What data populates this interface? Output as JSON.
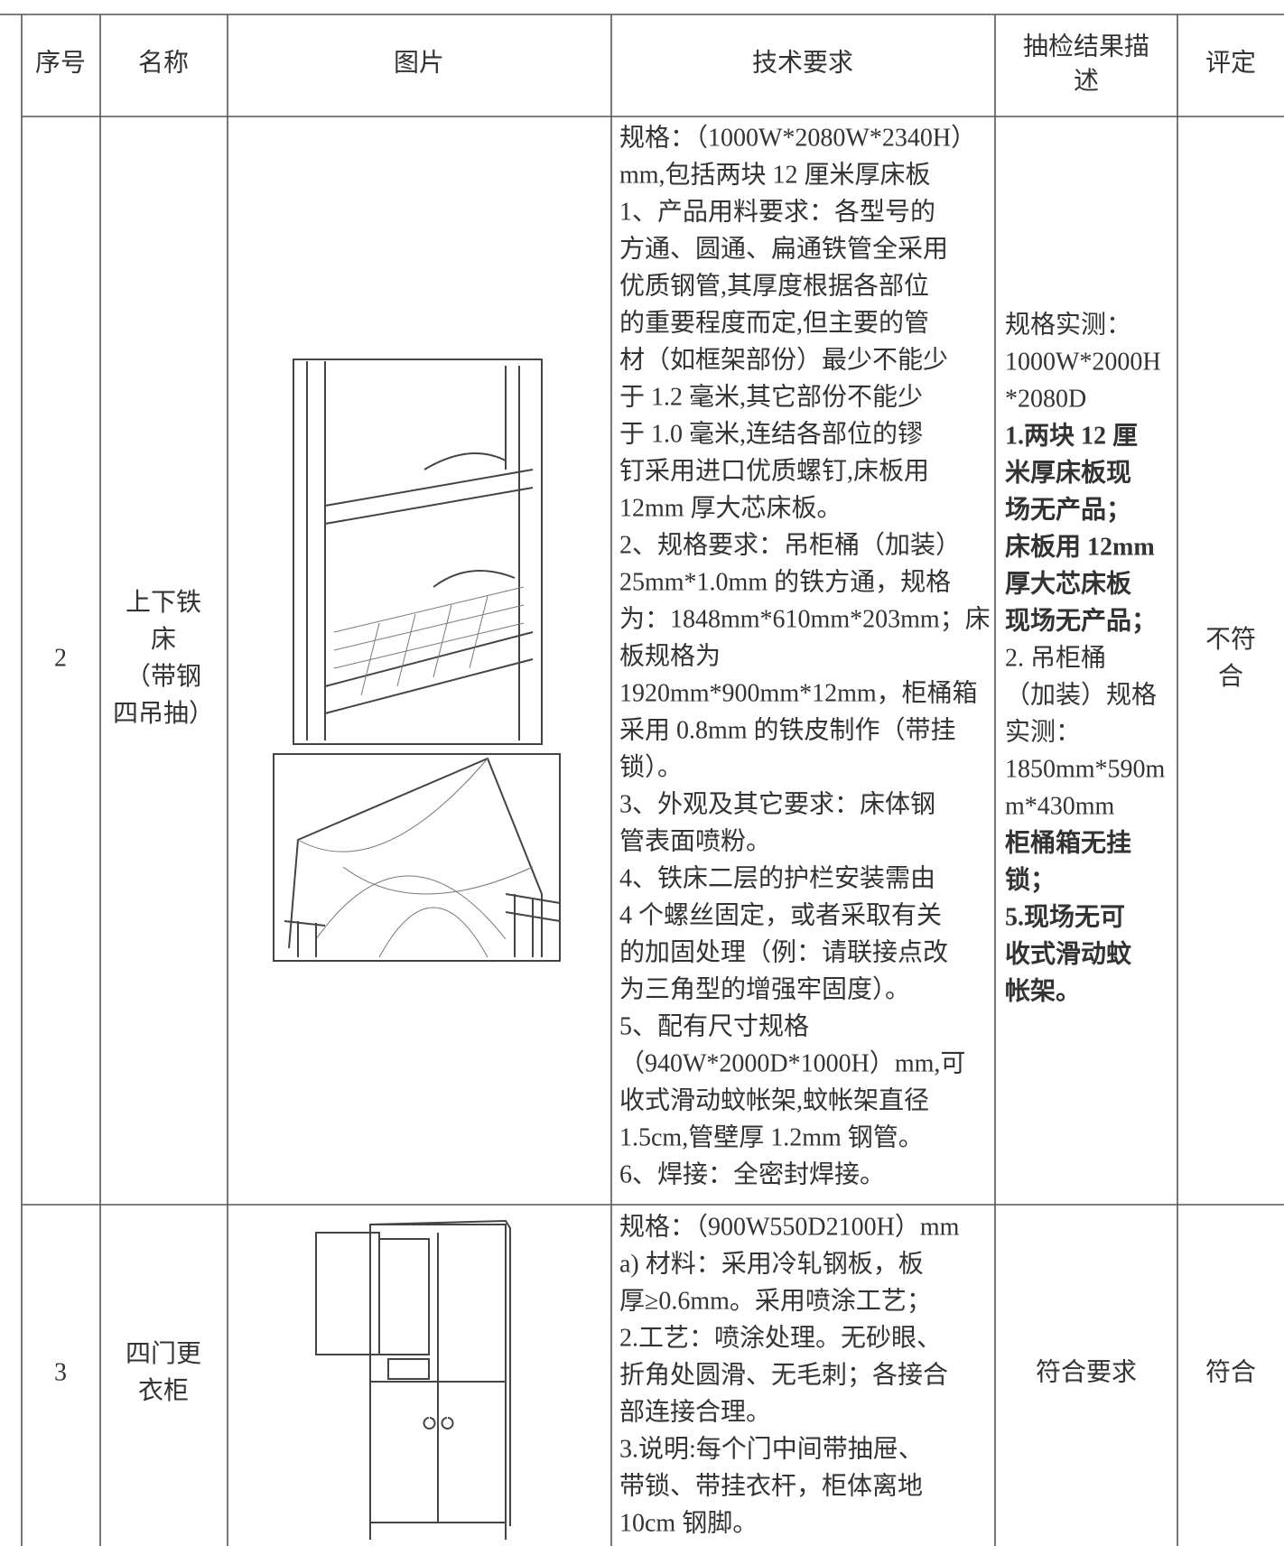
{
  "table": {
    "header": [
      [
        "序号"
      ],
      [
        "名称"
      ],
      [
        "图片"
      ],
      [
        "技术要求"
      ],
      [
        "抽检结果描",
        "述"
      ],
      [
        "评定"
      ]
    ],
    "rows": [
      {
        "no": "2",
        "name": [
          "上下铁",
          "床",
          "（带钢",
          "四吊抽）"
        ],
        "requirements": [
          "规格：（1000W*2080W*2340H）",
          "mm,包括两块 12 厘米厚床板",
          "1、产品用料要求：各型号的",
          "方通、圆通、扁通铁管全采用",
          "优质钢管,其厚度根据各部位",
          "的重要程度而定,但主要的管",
          "材（如框架部份）最少不能少",
          "于 1.2 毫米,其它部份不能少",
          "于 1.0 毫米,连结各部位的镠",
          "钉采用进口优质螺钉,床板用",
          "12mm 厚大芯床板。",
          "2、规格要求：吊柜桶（加装）",
          "25mm*1.0mm 的铁方通，规格",
          "为：1848mm*610mm*203mm；床",
          "板规格为",
          "1920mm*900mm*12mm，柜桶箱",
          "采用 0.8mm 的铁皮制作（带挂",
          "锁）。",
          "3、外观及其它要求：床体钢",
          "管表面喷粉。",
          "4、铁床二层的护栏安装需由",
          "4 个螺丝固定，或者采取有关",
          "的加固处理（例：请联接点改",
          "为三角型的增强牢固度）。",
          "5、配有尺寸规格",
          "（940W*2000D*1000H）mm,可",
          "收式滑动蚊帐架,蚊帐架直径",
          "1.5cm,管壁厚 1.2mm 钢管。",
          "6、焊接：全密封焊接。"
        ],
        "result": [
          {
            "text": "规格实测：",
            "bold": false
          },
          {
            "text": "1000W*2000H",
            "bold": false
          },
          {
            "text": "*2080D",
            "bold": false
          },
          {
            "text": "1.两块 12 厘",
            "bold": true
          },
          {
            "text": "米厚床板现",
            "bold": true
          },
          {
            "text": "场无产品；",
            "bold": true
          },
          {
            "text": "床板用 12mm",
            "bold": true
          },
          {
            "text": "厚大芯床板",
            "bold": true
          },
          {
            "text": "现场无产品；",
            "bold": true
          },
          {
            "text": "2. 吊柜桶",
            "bold": false
          },
          {
            "text": "（加装）规格",
            "bold": false
          },
          {
            "text": "实测：",
            "bold": false
          },
          {
            "text": "1850mm*590m",
            "bold": false
          },
          {
            "text": "m*430mm",
            "bold": false
          },
          {
            "text": "柜桶箱无挂",
            "bold": true
          },
          {
            "text": "锁；",
            "bold": true
          },
          {
            "text": "5.现场无可",
            "bold": true
          },
          {
            "text": "收式滑动蚊",
            "bold": true
          },
          {
            "text": "帐架。",
            "bold": true
          }
        ],
        "rating": [
          "不符",
          "合"
        ]
      },
      {
        "no": "3",
        "name": [
          "四门更",
          "衣柜"
        ],
        "requirements": [
          "规格：（900W550D2100H）mm",
          "a) 材料：采用冷轧钢板，板",
          "厚≥0.6mm。采用喷涂工艺；",
          "2.工艺：喷涂处理。无砂眼、",
          "折角处圆滑、无毛刺；各接合",
          "部连接合理。",
          "3.说明:每个门中间带抽屉、",
          "带锁、带挂衣杆，柜体离地",
          "10cm 钢脚。"
        ],
        "result": [
          {
            "text": "符合要求",
            "bold": false
          }
        ],
        "rating": [
          "符合"
        ]
      }
    ]
  }
}
